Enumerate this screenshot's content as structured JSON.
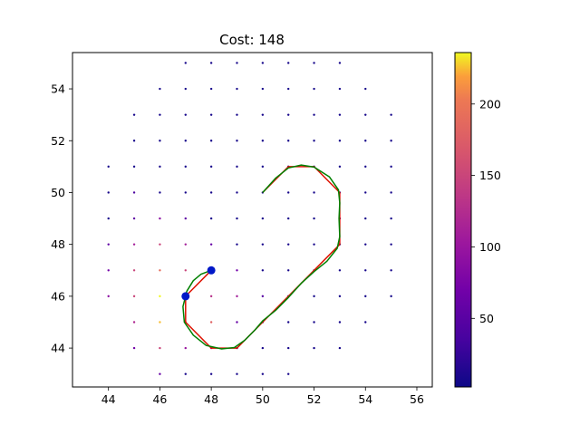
{
  "chart_data": {
    "type": "scatter",
    "title": "Cost: 148",
    "xlabel": "",
    "ylabel": "",
    "xlim": [
      42.6,
      56.6
    ],
    "ylim": [
      42.5,
      55.4
    ],
    "xticks": [
      44,
      46,
      48,
      50,
      52,
      54,
      56
    ],
    "yticks": [
      44,
      46,
      48,
      50,
      52,
      54
    ],
    "grid": false,
    "colormap": "plasma",
    "colorbar": {
      "range": [
        2,
        236
      ],
      "ticks": [
        50,
        100,
        150,
        200
      ]
    },
    "grid_points": [
      {
        "y": 55,
        "xs": [
          47,
          48,
          49,
          50,
          51,
          52,
          53
        ]
      },
      {
        "y": 54,
        "xs": [
          46,
          47,
          48,
          49,
          50,
          51,
          52,
          53,
          54
        ]
      },
      {
        "y": 53,
        "xs": [
          45,
          46,
          47,
          48,
          49,
          50,
          51,
          52,
          53,
          54,
          55
        ]
      },
      {
        "y": 52,
        "xs": [
          45,
          46,
          47,
          48,
          49,
          50,
          51,
          52,
          53,
          54,
          55
        ]
      },
      {
        "y": 51,
        "xs": [
          44,
          45,
          46,
          47,
          48,
          49,
          50,
          51,
          52,
          53,
          54,
          55
        ]
      },
      {
        "y": 50,
        "xs": [
          44,
          45,
          46,
          47,
          48,
          49,
          50,
          51,
          52,
          53,
          54,
          55
        ]
      },
      {
        "y": 49,
        "xs": [
          44,
          45,
          46,
          47,
          48,
          49,
          50,
          51,
          52,
          53,
          54,
          55
        ]
      },
      {
        "y": 48,
        "xs": [
          44,
          45,
          46,
          47,
          48,
          49,
          50,
          51,
          52,
          53,
          54,
          55
        ]
      },
      {
        "y": 47,
        "xs": [
          44,
          45,
          46,
          47,
          48,
          49,
          50,
          51,
          52,
          53,
          54,
          55
        ]
      },
      {
        "y": 46,
        "xs": [
          44,
          45,
          46,
          47,
          48,
          49,
          50,
          51,
          52,
          53,
          54,
          55
        ]
      },
      {
        "y": 45,
        "xs": [
          45,
          46,
          47,
          48,
          49,
          50,
          51,
          52,
          53,
          54
        ]
      },
      {
        "y": 44,
        "xs": [
          45,
          46,
          47,
          48,
          49,
          50,
          51,
          52,
          53
        ]
      },
      {
        "y": 43,
        "xs": [
          46,
          47,
          48,
          49,
          50,
          51
        ]
      }
    ],
    "point_costs": [
      {
        "x": 44,
        "y": 48,
        "c": 55
      },
      {
        "x": 44,
        "y": 47,
        "c": 70
      },
      {
        "x": 44,
        "y": 46,
        "c": 90
      },
      {
        "x": 45,
        "y": 50,
        "c": 40
      },
      {
        "x": 45,
        "y": 49,
        "c": 55
      },
      {
        "x": 45,
        "y": 48,
        "c": 110
      },
      {
        "x": 45,
        "y": 47,
        "c": 150
      },
      {
        "x": 45,
        "y": 46,
        "c": 150
      },
      {
        "x": 45,
        "y": 45,
        "c": 120
      },
      {
        "x": 45,
        "y": 44,
        "c": 70
      },
      {
        "x": 46,
        "y": 49,
        "c": 90
      },
      {
        "x": 46,
        "y": 48,
        "c": 150
      },
      {
        "x": 46,
        "y": 47,
        "c": 190
      },
      {
        "x": 46,
        "y": 46,
        "c": 236
      },
      {
        "x": 46,
        "y": 45,
        "c": 225
      },
      {
        "x": 46,
        "y": 44,
        "c": 150
      },
      {
        "x": 46,
        "y": 43,
        "c": 60
      },
      {
        "x": 47,
        "y": 49,
        "c": 55
      },
      {
        "x": 47,
        "y": 48,
        "c": 110
      },
      {
        "x": 47,
        "y": 47,
        "c": 150
      },
      {
        "x": 47,
        "y": 45,
        "c": 150
      },
      {
        "x": 47,
        "y": 44,
        "c": 100
      },
      {
        "x": 48,
        "y": 48,
        "c": 60
      },
      {
        "x": 48,
        "y": 46,
        "c": 130
      },
      {
        "x": 48,
        "y": 45,
        "c": 180
      },
      {
        "x": 48,
        "y": 44,
        "c": 90
      },
      {
        "x": 49,
        "y": 47,
        "c": 70
      },
      {
        "x": 49,
        "y": 46,
        "c": 110
      },
      {
        "x": 49,
        "y": 45,
        "c": 60
      },
      {
        "x": 50,
        "y": 46,
        "c": 50
      }
    ],
    "default_cost": 8,
    "path_red": [
      [
        47,
        46
      ],
      [
        48,
        47
      ],
      [
        47,
        46
      ],
      [
        47,
        45
      ],
      [
        48,
        44
      ],
      [
        49,
        44
      ],
      [
        50,
        45
      ],
      [
        51,
        46
      ],
      [
        52,
        47
      ],
      [
        53,
        48
      ],
      [
        53,
        49
      ],
      [
        53,
        50
      ],
      [
        52,
        51
      ],
      [
        51,
        51
      ],
      [
        50,
        50
      ]
    ],
    "path_green": [
      [
        48,
        47
      ],
      [
        47.6,
        46.85
      ],
      [
        47.3,
        46.6
      ],
      [
        47.05,
        46.2
      ],
      [
        46.9,
        45.6
      ],
      [
        46.95,
        45.0
      ],
      [
        47.3,
        44.5
      ],
      [
        47.8,
        44.1
      ],
      [
        48.4,
        43.97
      ],
      [
        48.9,
        44.02
      ],
      [
        49.3,
        44.3
      ],
      [
        49.7,
        44.7
      ],
      [
        50.0,
        45.05
      ],
      [
        50.5,
        45.45
      ],
      [
        51.0,
        45.95
      ],
      [
        51.5,
        46.5
      ],
      [
        52.0,
        46.95
      ],
      [
        52.5,
        47.35
      ],
      [
        52.9,
        47.85
      ],
      [
        53.0,
        48.3
      ],
      [
        52.97,
        49.0
      ],
      [
        53.0,
        49.6
      ],
      [
        52.95,
        50.1
      ],
      [
        52.6,
        50.6
      ],
      [
        52.0,
        50.98
      ],
      [
        51.5,
        51.06
      ],
      [
        51.0,
        50.95
      ],
      [
        50.5,
        50.55
      ],
      [
        50.0,
        50.0
      ]
    ],
    "markers": [
      [
        48,
        47
      ],
      [
        47,
        46
      ]
    ],
    "colors": {
      "path_red": "#dd1100",
      "path_green": "#008000",
      "marker": "#0018c8"
    }
  }
}
